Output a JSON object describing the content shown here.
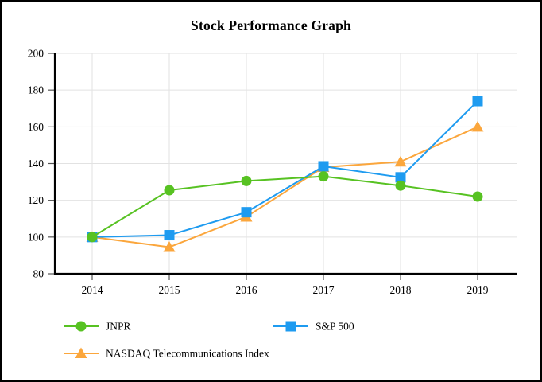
{
  "chart_data": {
    "type": "line",
    "title": "Stock Performance Graph",
    "categories": [
      "2014",
      "2015",
      "2016",
      "2017",
      "2018",
      "2019"
    ],
    "series": [
      {
        "name": "JNPR",
        "marker": "circle",
        "color": "#57c222",
        "values": [
          100,
          125.5,
          130.5,
          133,
          128,
          122
        ]
      },
      {
        "name": "S&P 500",
        "marker": "square",
        "color": "#1e9bf0",
        "values": [
          100,
          101,
          113.5,
          138.5,
          132.5,
          174
        ]
      },
      {
        "name": "NASDAQ Telecommunications Index",
        "marker": "triangle",
        "color": "#fba63c",
        "values": [
          100,
          94.5,
          111,
          138,
          141,
          160
        ]
      }
    ],
    "ylim": [
      80,
      200
    ],
    "ytick_step": 20,
    "xlabel": "",
    "ylabel": "",
    "grid": true,
    "legend_position": "bottom-left"
  },
  "style_colors": {
    "gridline": "#e2e2e2",
    "axis": "#000000",
    "tick": "#555555",
    "text": "#000000",
    "background": "#ffffff",
    "border": "#000000"
  }
}
